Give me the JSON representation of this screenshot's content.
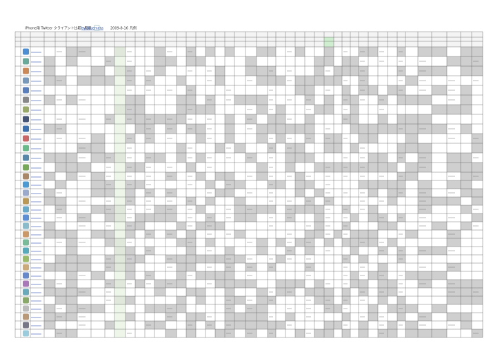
{
  "header": {
    "title": "iPhone用 Twitter クライアント比較一覧表",
    "author": "by Bluemeta",
    "date": "2009-8-16",
    "legend": "凡例"
  }
}
